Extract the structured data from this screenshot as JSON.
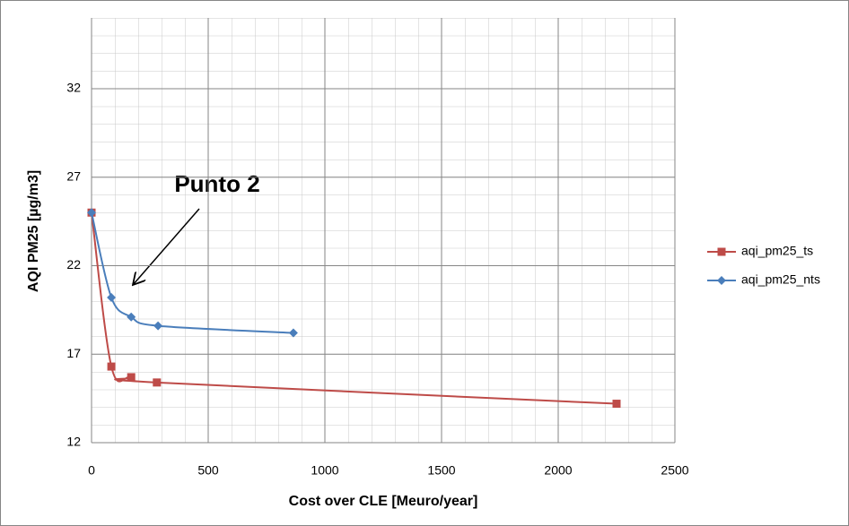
{
  "chart_data": {
    "type": "line",
    "x_label": "Cost over CLE [Meuro/year]",
    "y_label": "AQI PM25 [µg/m3]",
    "annotation": "Punto 2",
    "xlim": [
      0,
      2500
    ],
    "xticks": [
      0,
      500,
      1000,
      1500,
      2000,
      2500
    ],
    "ylim": [
      12,
      36
    ],
    "yticks": [
      12,
      17,
      22,
      27,
      32
    ],
    "grid": true,
    "legend": "right",
    "series": [
      {
        "name": "aqi_pm25_ts",
        "color": "#be4b48",
        "marker": "square",
        "x": [
          0,
          85,
          170,
          280,
          2250
        ],
        "values": [
          25,
          16.3,
          15.7,
          15.4,
          14.2
        ]
      },
      {
        "name": "aqi_pm25_nts",
        "color": "#4a7ebb",
        "marker": "diamond",
        "x": [
          0,
          85,
          170,
          285,
          865
        ],
        "values": [
          25,
          20.2,
          19.1,
          18.6,
          18.2
        ]
      }
    ]
  }
}
